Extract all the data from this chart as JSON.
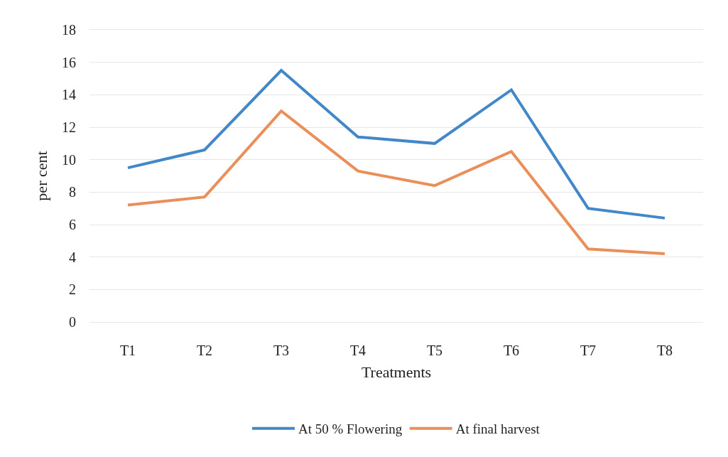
{
  "chart_data": {
    "type": "line",
    "xlabel": "Treatments",
    "ylabel": "per cent",
    "categories": [
      "T1",
      "T2",
      "T3",
      "T4",
      "T5",
      "T6",
      "T7",
      "T8"
    ],
    "series": [
      {
        "name": "At 50 % Flowering",
        "color": "#4287c8",
        "values": [
          9.5,
          10.6,
          15.5,
          11.4,
          11.0,
          14.3,
          7.0,
          6.4
        ]
      },
      {
        "name": "At final harvest",
        "color": "#eb8f5a",
        "values": [
          7.2,
          7.7,
          13.0,
          9.3,
          8.4,
          10.5,
          4.5,
          4.2
        ]
      }
    ],
    "ylim": [
      0,
      18
    ],
    "yticks": [
      0,
      2,
      4,
      6,
      8,
      10,
      12,
      14,
      16,
      18
    ],
    "grid": "y",
    "legend": "bottom",
    "marker": "none",
    "line_style": "solid"
  }
}
